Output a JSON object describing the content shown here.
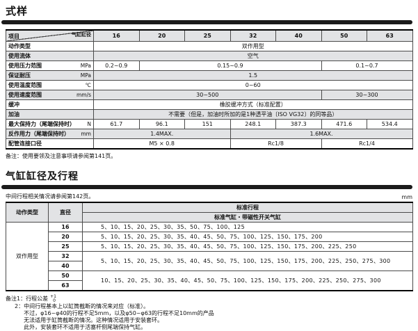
{
  "section1": {
    "title": "式样",
    "footnote": "备注：使用要领及注意事项请参阅第141页。"
  },
  "table1": {
    "corner_left": "项目",
    "corner_right": "气缸缸径",
    "columns": [
      "16",
      "20",
      "25",
      "32",
      "40",
      "50",
      "63"
    ],
    "rows": [
      {
        "label": "动作类型",
        "unit": "",
        "shaded": false,
        "cells": [
          {
            "text": "双作用型",
            "span": 7
          }
        ]
      },
      {
        "label": "使用流体",
        "unit": "",
        "shaded": true,
        "cells": [
          {
            "text": "空气",
            "span": 7
          }
        ]
      },
      {
        "label": "使用压力范围",
        "unit": "MPa",
        "shaded": false,
        "cells": [
          {
            "text": "0.2~0.9",
            "span": 1
          },
          {
            "text": "0.15~0.9",
            "span": 4
          },
          {
            "text": "0.1~0.7",
            "span": 2
          }
        ]
      },
      {
        "label": "保证耐压",
        "unit": "MPa",
        "shaded": true,
        "cells": [
          {
            "text": "1.5",
            "span": 7
          }
        ]
      },
      {
        "label": "使用温度范围",
        "unit": "℃",
        "shaded": false,
        "cells": [
          {
            "text": "0~60",
            "span": 7
          }
        ]
      },
      {
        "label": "使用速度范围",
        "unit": "mm/s",
        "shaded": true,
        "cells": [
          {
            "text": "30~500",
            "span": 5
          },
          {
            "text": "30~300",
            "span": 2
          }
        ]
      },
      {
        "label": "缓冲",
        "unit": "",
        "shaded": false,
        "cells": [
          {
            "text": "橡胶缓冲方式（标准配置）",
            "span": 7
          }
        ]
      },
      {
        "label": "加油",
        "unit": "",
        "shaded": true,
        "cells": [
          {
            "text": "不需要（但是，加油时所加的是1种透平油〔ISO VG32〕的同等品）",
            "span": 7
          }
        ]
      },
      {
        "label": "最大保持力（尾端保持时）",
        "unit": "N",
        "shaded": false,
        "cells": [
          {
            "text": "61.7",
            "span": 1
          },
          {
            "text": "96.1",
            "span": 1
          },
          {
            "text": "151",
            "span": 1
          },
          {
            "text": "248.1",
            "span": 1
          },
          {
            "text": "387.3",
            "span": 1
          },
          {
            "text": "471.6",
            "span": 1
          },
          {
            "text": "534.4",
            "span": 1
          }
        ]
      },
      {
        "label": "反作用力（尾端保持时）",
        "unit": "mm",
        "shaded": true,
        "cells": [
          {
            "text": "1.4MAX.",
            "span": 3
          },
          {
            "text": "1.6MAX.",
            "span": 4
          }
        ]
      },
      {
        "label": "配管连接口径",
        "unit": "",
        "shaded": false,
        "cells": [
          {
            "text": "M5 × 0.8",
            "span": 3
          },
          {
            "text": "Rc1/8",
            "span": 2
          },
          {
            "text": "Rc1/4",
            "span": 2
          }
        ]
      }
    ]
  },
  "section2": {
    "title": "气缸缸径及行程",
    "note": "中间行程相关情况请参阅第142页。",
    "unit_label": "mm"
  },
  "table2": {
    "action_type_header": "动作类型",
    "bore_header": "直径",
    "stroke_header": "标准行程",
    "stroke_subheader": "标准气缸・带磁性开关气缸",
    "action_type": "双作用型",
    "rows": [
      {
        "bore": "16",
        "strokes": "5、10、15、20、25、30、35、50、75、100、125",
        "rowspan": 1
      },
      {
        "bore": "20",
        "strokes": "5、10、15、20、25、30、35、40、45、50、75、100、125、150、175、200",
        "rowspan": 1
      },
      {
        "bore": "25",
        "strokes": "5、10、15、20、25、30、35、40、45、50、75、100、125、150、175、200、225、250",
        "rowspan": 1
      },
      {
        "bore": "32",
        "strokes": "5、10、15、20、25、30、35、40、45、50、75、100、125、150、175、200、225、250、275、300",
        "rowspan": 2
      },
      {
        "bore": "40"
      },
      {
        "bore": "50",
        "strokes": "10、15、20、25、30、35、40、45、50、75、100、125、150、175、200、225、250、275、300",
        "rowspan": 2
      },
      {
        "bore": "63"
      }
    ]
  },
  "notes": {
    "line1_label": "备注1：",
    "line1_text": "行程公差",
    "tolerance_upper": "+1",
    "tolerance_lower": "0",
    "line2_label": "2：",
    "line2_lines": [
      "中间行程基本上以缸筒截断的情况来对应（标准）。",
      "不过，φ16~φ40的行程不足5mm，以及φ50~φ63的行程不足10mm的产品",
      "无法适用于缸筒截断的情况。这种情况适用于安装套环。",
      "此外，安装套环不适用于活塞杆侧尾端保持气缸。"
    ]
  },
  "colors": {
    "bar": "#1b1b1b",
    "shade": "#e2e3e5",
    "border": "#4a4a4a"
  }
}
